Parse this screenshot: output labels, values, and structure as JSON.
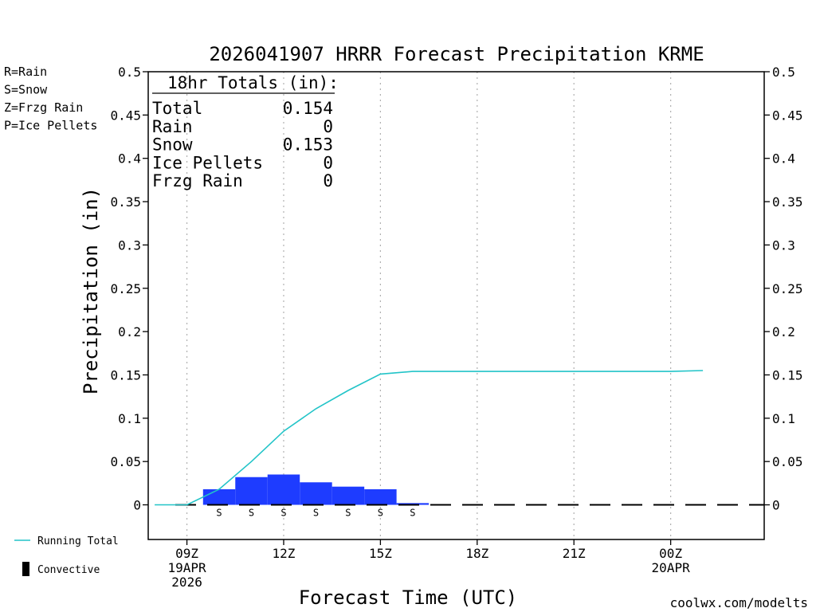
{
  "chart_data": {
    "type": "bar",
    "title": "2026041907 HRRR Forecast Precipitation KRME",
    "xlabel": "Forecast Time (UTC)",
    "ylabel": "Precipitation (in)",
    "ylim": [
      -0.04,
      0.5
    ],
    "xlim": [
      7.8,
      26.9
    ],
    "y_ticks": [
      0,
      0.05,
      0.1,
      0.15,
      0.2,
      0.25,
      0.3,
      0.35,
      0.4,
      0.45,
      0.5
    ],
    "y_tick_labels": [
      "0",
      "0.05",
      "0.1",
      "0.15",
      "0.2",
      "0.25",
      "0.3",
      "0.35",
      "0.4",
      "0.45",
      "0.5"
    ],
    "x_ticks": [
      {
        "hour": 9,
        "lines": [
          "09Z",
          "19APR",
          "2026"
        ]
      },
      {
        "hour": 12,
        "lines": [
          "12Z"
        ]
      },
      {
        "hour": 15,
        "lines": [
          "15Z"
        ]
      },
      {
        "hour": 18,
        "lines": [
          "18Z"
        ]
      },
      {
        "hour": 21,
        "lines": [
          "21Z"
        ]
      },
      {
        "hour": 24,
        "lines": [
          "00Z",
          "20APR"
        ]
      }
    ],
    "grid": "vertical-dotted",
    "hourly_bars": [
      {
        "start": 9.5,
        "end": 10.5,
        "value": 0.018,
        "symbol": "S"
      },
      {
        "start": 10.5,
        "end": 11.5,
        "value": 0.032,
        "symbol": "S"
      },
      {
        "start": 11.5,
        "end": 12.5,
        "value": 0.035,
        "symbol": "S"
      },
      {
        "start": 12.5,
        "end": 13.5,
        "value": 0.026,
        "symbol": "S"
      },
      {
        "start": 13.5,
        "end": 14.5,
        "value": 0.021,
        "symbol": "S"
      },
      {
        "start": 14.5,
        "end": 15.5,
        "value": 0.018,
        "symbol": "S"
      },
      {
        "start": 15.5,
        "end": 16.5,
        "value": 0.002,
        "symbol": "S"
      }
    ],
    "baseline_range": [
      7.8,
      26.9
    ],
    "running_total": {
      "name": "Running Total",
      "points": [
        [
          8,
          0
        ],
        [
          9,
          0
        ],
        [
          10,
          0.018
        ],
        [
          11,
          0.05
        ],
        [
          12,
          0.085
        ],
        [
          13,
          0.111
        ],
        [
          14,
          0.132
        ],
        [
          15,
          0.151
        ],
        [
          16,
          0.154
        ],
        [
          17,
          0.154
        ],
        [
          18,
          0.154
        ],
        [
          19,
          0.154
        ],
        [
          20,
          0.154
        ],
        [
          21,
          0.154
        ],
        [
          22,
          0.154
        ],
        [
          23,
          0.154
        ],
        [
          24,
          0.154
        ],
        [
          25,
          0.155
        ]
      ]
    },
    "totals_box": {
      "header": "18hr Totals (in):",
      "rows": [
        {
          "label": "Total",
          "value": "0.154"
        },
        {
          "label": "Rain",
          "value": "0"
        },
        {
          "label": "Snow",
          "value": "0.153"
        },
        {
          "label": "Ice Pellets",
          "value": "0"
        },
        {
          "label": "Frzg Rain",
          "value": "0"
        }
      ]
    },
    "type_legend": [
      {
        "text": "R=Rain",
        "color": "#22dd22"
      },
      {
        "text": "S=Snow",
        "color": "#3344ee"
      },
      {
        "text": "Z=Frzg Rain",
        "color": "#ee8833"
      },
      {
        "text": "P=Ice Pellets",
        "color": "#ee22aa"
      }
    ],
    "series_legend": [
      {
        "text": "Running Total",
        "color": "#22c4c8",
        "kind": "line"
      },
      {
        "text": "Convective",
        "color": "#000000",
        "kind": "bar"
      }
    ],
    "colors": {
      "snow_bar": "#1e3cff",
      "running_total": "#22c4c8",
      "symbol": "#3344ee",
      "grid": "#b0b0b0"
    },
    "credit": {
      "text": "coolwx.com/modelts",
      "color": "#dd2222"
    }
  }
}
